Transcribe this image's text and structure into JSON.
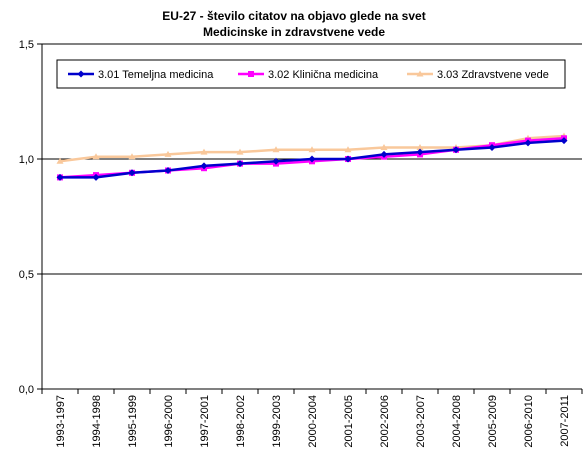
{
  "chart_data": {
    "type": "line",
    "title": "EU-27 - število citatov na objavo glede na svet",
    "subtitle": "Medicinske in zdravstvene vede",
    "xlabel": "",
    "ylabel": "",
    "categories": [
      "1993-1997",
      "1994-1998",
      "1995-1999",
      "1996-2000",
      "1997-2001",
      "1998-2002",
      "1999-2003",
      "2000-2004",
      "2001-2005",
      "2002-2006",
      "2003-2007",
      "2004-2008",
      "2005-2009",
      "2006-2010",
      "2007-2011"
    ],
    "ylim": [
      0,
      1.5
    ],
    "yticks": [
      "0,0",
      "0,5",
      "1,0",
      "1,5"
    ],
    "grid": true,
    "legend_position": "top",
    "series": [
      {
        "name": "3.01 Temeljna medicina",
        "color": "#0000cc",
        "marker": "diamond",
        "values": [
          0.92,
          0.92,
          0.94,
          0.95,
          0.97,
          0.98,
          0.99,
          1.0,
          1.0,
          1.02,
          1.03,
          1.04,
          1.05,
          1.07,
          1.08
        ]
      },
      {
        "name": "3.02 Klinična medicina",
        "color": "#ff00ff",
        "marker": "square",
        "values": [
          0.92,
          0.93,
          0.94,
          0.95,
          0.96,
          0.98,
          0.98,
          0.99,
          1.0,
          1.01,
          1.02,
          1.04,
          1.06,
          1.08,
          1.09
        ]
      },
      {
        "name": "3.03 Zdravstvene vede",
        "color": "#f9c89b",
        "marker": "triangle",
        "values": [
          0.99,
          1.01,
          1.01,
          1.02,
          1.03,
          1.03,
          1.04,
          1.04,
          1.04,
          1.05,
          1.05,
          1.05,
          1.06,
          1.09,
          1.1
        ]
      }
    ]
  }
}
